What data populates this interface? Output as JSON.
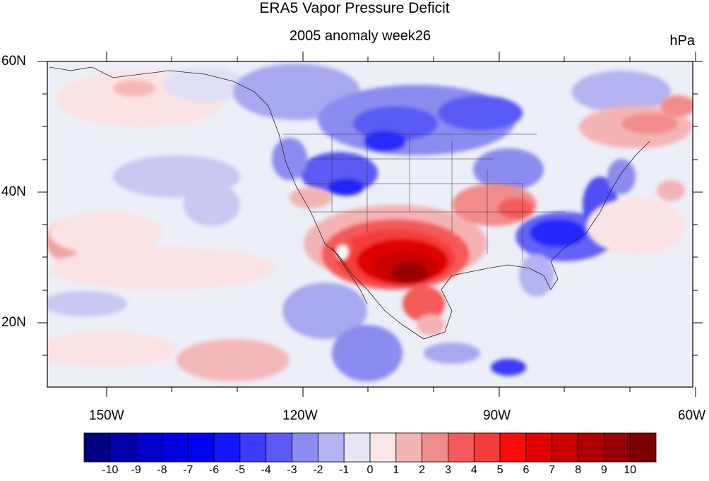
{
  "header": {
    "title": "ERA5 Vapor Pressure Deficit",
    "subtitle": "2005 anomaly week26",
    "units": "hPa"
  },
  "axes": {
    "lat_labels": [
      "60N",
      "40N",
      "20N"
    ],
    "lon_labels": [
      "150W",
      "120W",
      "90W",
      "60W"
    ]
  },
  "colorbar": {
    "labels": [
      "-10",
      "-9",
      "-8",
      "-7",
      "-6",
      "-5",
      "-4",
      "-3",
      "-2",
      "-1",
      "0",
      "1",
      "2",
      "3",
      "4",
      "5",
      "6",
      "7",
      "8",
      "9",
      "10"
    ],
    "colors": [
      "#000080",
      "#0000a8",
      "#0000c8",
      "#0000e0",
      "#0000f5",
      "#1515ff",
      "#3c3cff",
      "#5a5af5",
      "#8c8cf0",
      "#b4b4f2",
      "#e6e6f7",
      "#fbe6e6",
      "#f5b4b4",
      "#f28c8c",
      "#f55a5a",
      "#f53c3c",
      "#ff0a0a",
      "#e00000",
      "#c80000",
      "#ad0000",
      "#960000",
      "#7d0000"
    ]
  },
  "map": {
    "region": "North America and adjacent Pacific/Atlantic, 10N–60N, 160W–60W",
    "colors": {
      "neutral_pos": "#fbe6e6",
      "neutral_neg": "#e6e6f7",
      "ocean_base": "#eeeef8"
    }
  }
}
